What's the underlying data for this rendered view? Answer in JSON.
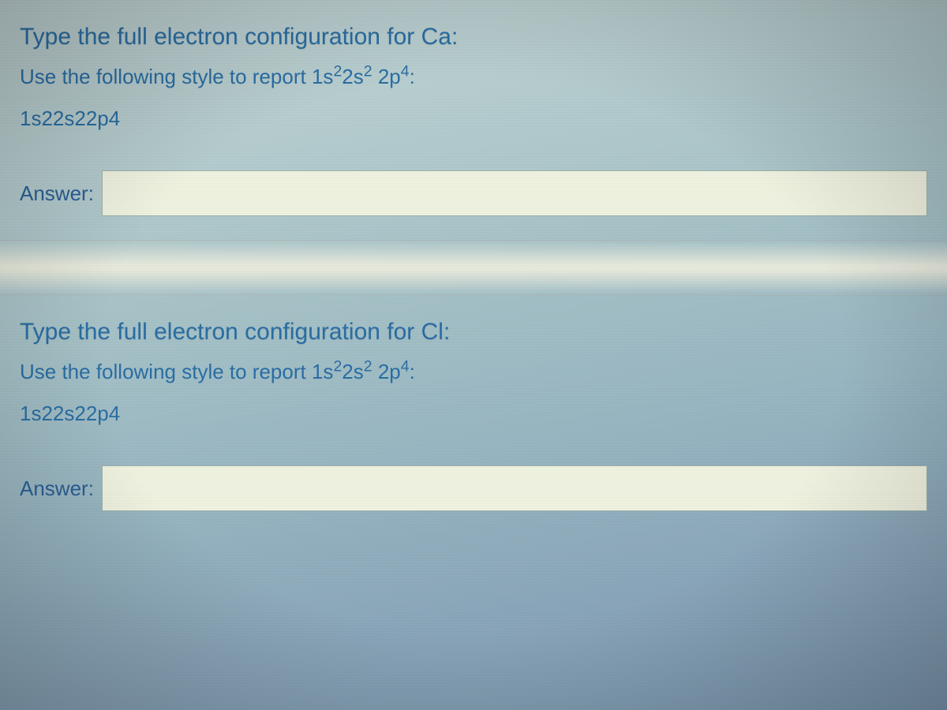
{
  "question1": {
    "title": "Type the full electron configuration for Ca:",
    "instruction_prefix": "Use the following style to report ",
    "instruction_formula_parts": [
      "1s",
      "2",
      "2s",
      "2",
      " 2p",
      "4"
    ],
    "instruction_suffix": ":",
    "example_plain": "1s22s22p4",
    "answer_label": "Answer:",
    "answer_value": ""
  },
  "question2": {
    "title": "Type the full electron configuration for Cl:",
    "instruction_prefix": "Use the following style to report ",
    "instruction_formula_parts": [
      "1s",
      "2",
      "2s",
      "2",
      " 2p",
      "4"
    ],
    "instruction_suffix": ":",
    "example_plain": "1s22s22p4",
    "answer_label": "Answer:",
    "answer_value": ""
  },
  "colors": {
    "link_text": "#2a6fa6",
    "input_bg": "#f3f5e3",
    "input_border": "#9eb5af"
  },
  "typography": {
    "title_fontsize": 30,
    "body_fontsize": 26,
    "font_family": "Segoe UI"
  }
}
